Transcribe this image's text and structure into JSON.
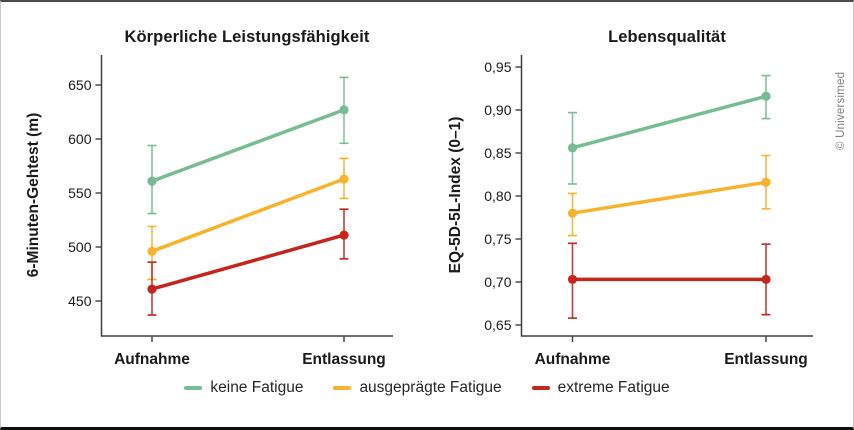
{
  "credit": "© Universimed",
  "colors": {
    "green": "#77BD92",
    "yellow": "#F7B32C",
    "red": "#C5251D",
    "axis": "#3f3f3f"
  },
  "legend": [
    {
      "label": "keine Fatigue",
      "color_key": "green"
    },
    {
      "label": "ausgeprägte Fatigue",
      "color_key": "yellow"
    },
    {
      "label": "extreme Fatigue",
      "color_key": "red"
    }
  ],
  "chart_data": [
    {
      "type": "line",
      "title": "Körperliche Leistungsfähigkeit",
      "ylabel": "6-Minuten-Gehtest (m)",
      "categories": [
        "Aufnahme",
        "Entlassung"
      ],
      "yticks": [
        450,
        500,
        550,
        600,
        650
      ],
      "ytick_labels": [
        "450",
        "500",
        "550",
        "600",
        "650"
      ],
      "ylim": [
        417,
        678
      ],
      "grid": false,
      "series": [
        {
          "name": "keine Fatigue",
          "color_key": "green",
          "values": [
            561,
            627
          ],
          "ci_low": [
            531,
            596
          ],
          "ci_high": [
            594,
            657
          ]
        },
        {
          "name": "ausgeprägte Fatigue",
          "color_key": "yellow",
          "values": [
            496,
            563
          ],
          "ci_low": [
            470,
            545
          ],
          "ci_high": [
            519,
            582
          ]
        },
        {
          "name": "extreme Fatigue",
          "color_key": "red",
          "values": [
            461,
            511
          ],
          "ci_low": [
            437,
            489
          ],
          "ci_high": [
            486,
            535
          ]
        }
      ]
    },
    {
      "type": "line",
      "title": "Lebensqualität",
      "ylabel": "EQ-5D-5L-Index (0–1)",
      "categories": [
        "Aufnahme",
        "Entlassung"
      ],
      "yticks": [
        0.65,
        0.7,
        0.75,
        0.8,
        0.85,
        0.9,
        0.95
      ],
      "ytick_labels": [
        "0,65",
        "0,70",
        "0,75",
        "0,80",
        "0,85",
        "0,90",
        "0,95"
      ],
      "ylim": [
        0.637,
        0.964
      ],
      "grid": false,
      "series": [
        {
          "name": "keine Fatigue",
          "color_key": "green",
          "values": [
            0.856,
            0.916
          ],
          "ci_low": [
            0.814,
            0.89
          ],
          "ci_high": [
            0.897,
            0.94
          ]
        },
        {
          "name": "ausgeprägte Fatigue",
          "color_key": "yellow",
          "values": [
            0.78,
            0.816
          ],
          "ci_low": [
            0.754,
            0.785
          ],
          "ci_high": [
            0.803,
            0.847
          ]
        },
        {
          "name": "extreme Fatigue",
          "color_key": "red",
          "values": [
            0.703,
            0.703
          ],
          "ci_low": [
            0.658,
            0.662
          ],
          "ci_high": [
            0.745,
            0.744
          ]
        }
      ]
    }
  ]
}
